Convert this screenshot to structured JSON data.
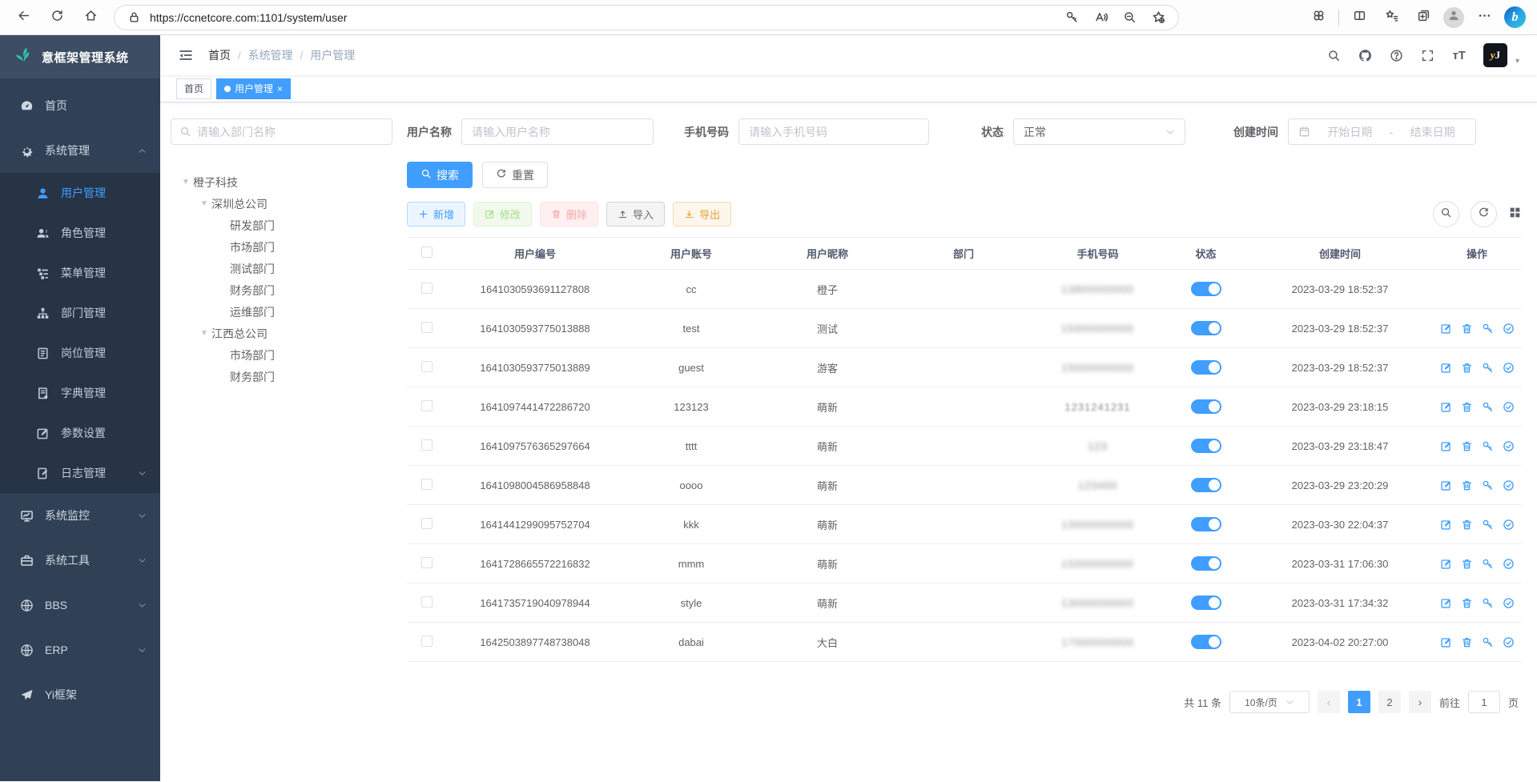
{
  "browser": {
    "url": "https://ccnetcore.com:1101/system/user"
  },
  "sidebar": {
    "logo_text": "意框架管理系统",
    "menu": [
      {
        "label": "首页",
        "icon": "dashboard",
        "level": 0
      },
      {
        "label": "系统管理",
        "icon": "gear",
        "level": 0,
        "chevron": "up"
      },
      {
        "label": "用户管理",
        "icon": "user",
        "level": 1,
        "active": true
      },
      {
        "label": "角色管理",
        "icon": "role",
        "level": 1
      },
      {
        "label": "菜单管理",
        "icon": "menu-tree",
        "level": 1
      },
      {
        "label": "部门管理",
        "icon": "org",
        "level": 1
      },
      {
        "label": "岗位管理",
        "icon": "badge",
        "level": 1
      },
      {
        "label": "字典管理",
        "icon": "book",
        "level": 1
      },
      {
        "label": "参数设置",
        "icon": "edit-square",
        "level": 1
      },
      {
        "label": "日志管理",
        "icon": "log",
        "level": 1,
        "chevron": "down"
      },
      {
        "label": "系统监控",
        "icon": "monitor",
        "level": 0,
        "chevron": "down"
      },
      {
        "label": "系统工具",
        "icon": "briefcase",
        "level": 0,
        "chevron": "down"
      },
      {
        "label": "BBS",
        "icon": "globe",
        "level": 0,
        "chevron": "down"
      },
      {
        "label": "ERP",
        "icon": "globe",
        "level": 0,
        "chevron": "down"
      },
      {
        "label": "Yi框架",
        "icon": "paper-plane",
        "level": 0
      }
    ]
  },
  "navbar": {
    "breadcrumb": [
      "首页",
      "系统管理",
      "用户管理"
    ],
    "avatar_text_left": "y",
    "avatar_text_right": "J"
  },
  "tabs": [
    {
      "label": "首页",
      "active": false,
      "closable": false
    },
    {
      "label": "用户管理",
      "active": true,
      "closable": true
    }
  ],
  "filters": {
    "dept_search_placeholder": "请输入部门名称",
    "username_label": "用户名称",
    "username_placeholder": "请输入用户名称",
    "phone_label": "手机号码",
    "phone_placeholder": "请输入手机号码",
    "status_label": "状态",
    "status_value": "正常",
    "created_label": "创建时间",
    "date_start_placeholder": "开始日期",
    "date_separator": "-",
    "date_end_placeholder": "结束日期",
    "search_button": "搜索",
    "reset_button": "重置"
  },
  "tree": [
    {
      "label": "橙子科技",
      "level": 0,
      "expandable": true
    },
    {
      "label": "深圳总公司",
      "level": 1,
      "expandable": true
    },
    {
      "label": "研发部门",
      "level": 2,
      "expandable": false
    },
    {
      "label": "市场部门",
      "level": 2,
      "expandable": false
    },
    {
      "label": "测试部门",
      "level": 2,
      "expandable": false
    },
    {
      "label": "财务部门",
      "level": 2,
      "expandable": false
    },
    {
      "label": "运维部门",
      "level": 2,
      "expandable": false
    },
    {
      "label": "江西总公司",
      "level": 1,
      "expandable": true
    },
    {
      "label": "市场部门",
      "level": 2,
      "expandable": false
    },
    {
      "label": "财务部门",
      "level": 2,
      "expandable": false
    }
  ],
  "toolbar": {
    "buttons": [
      {
        "label": "新增",
        "icon": "plus",
        "variant": "primary",
        "disabled": false
      },
      {
        "label": "修改",
        "icon": "edit",
        "variant": "success",
        "disabled": true
      },
      {
        "label": "删除",
        "icon": "trash",
        "variant": "danger",
        "disabled": true
      },
      {
        "label": "导入",
        "icon": "upload",
        "variant": "info",
        "disabled": false
      },
      {
        "label": "导出",
        "icon": "download",
        "variant": "warning",
        "disabled": false
      }
    ]
  },
  "table": {
    "columns": [
      "用户编号",
      "用户账号",
      "用户昵称",
      "部门",
      "手机号码",
      "状态",
      "创建时间",
      "操作"
    ],
    "row_action_icons": [
      "edit",
      "trash",
      "key",
      "check-circle"
    ],
    "rows": [
      {
        "id": "1641030593691127808",
        "account": "cc",
        "nickname": "橙子",
        "dept": "",
        "phone": "13800000000",
        "phone_masked": true,
        "mask": "heavy",
        "status_on": true,
        "created": "2023-03-29 18:52:37",
        "show_actions": false
      },
      {
        "id": "1641030593775013888",
        "account": "test",
        "nickname": "测试",
        "dept": "",
        "phone": "15000000000",
        "phone_masked": true,
        "mask": "heavy",
        "status_on": true,
        "created": "2023-03-29 18:52:37",
        "show_actions": true
      },
      {
        "id": "1641030593775013889",
        "account": "guest",
        "nickname": "游客",
        "dept": "",
        "phone": "15000000000",
        "phone_masked": true,
        "mask": "heavy",
        "status_on": true,
        "created": "2023-03-29 18:52:37",
        "show_actions": true
      },
      {
        "id": "1641097441472286720",
        "account": "123123",
        "nickname": "萌新",
        "dept": "",
        "phone": "1231241231",
        "phone_masked": true,
        "mask": "light",
        "status_on": true,
        "created": "2023-03-29 23:18:15",
        "show_actions": true
      },
      {
        "id": "1641097576365297664",
        "account": "tttt",
        "nickname": "萌新",
        "dept": "",
        "phone": "123",
        "phone_masked": true,
        "mask": "heavy",
        "status_on": true,
        "created": "2023-03-29 23:18:47",
        "show_actions": true
      },
      {
        "id": "1641098004586958848",
        "account": "oooo",
        "nickname": "萌新",
        "dept": "",
        "phone": "123400",
        "phone_masked": true,
        "mask": "heavy",
        "status_on": true,
        "created": "2023-03-29 23:20:29",
        "show_actions": true
      },
      {
        "id": "1641441299095752704",
        "account": "kkk",
        "nickname": "萌新",
        "dept": "",
        "phone": "13000000000",
        "phone_masked": true,
        "mask": "heavy",
        "status_on": true,
        "created": "2023-03-30 22:04:37",
        "show_actions": true
      },
      {
        "id": "1641728665572216832",
        "account": "mmm",
        "nickname": "萌新",
        "dept": "",
        "phone": "15000000000",
        "phone_masked": true,
        "mask": "heavy",
        "status_on": true,
        "created": "2023-03-31 17:06:30",
        "show_actions": true
      },
      {
        "id": "1641735719040978944",
        "account": "style",
        "nickname": "萌新",
        "dept": "",
        "phone": "13000000000",
        "phone_masked": true,
        "mask": "heavy",
        "status_on": true,
        "created": "2023-03-31 17:34:32",
        "show_actions": true
      },
      {
        "id": "1642503897748738048",
        "account": "dabai",
        "nickname": "大白",
        "dept": "",
        "phone": "17000000000",
        "phone_masked": true,
        "mask": "heavy",
        "status_on": true,
        "created": "2023-04-02 20:27:00",
        "show_actions": true
      }
    ]
  },
  "pagination": {
    "total_text": "共 11 条",
    "page_size_text": "10条/页",
    "pages": [
      "1",
      "2"
    ],
    "active_page": "1",
    "prev_enabled": false,
    "next_enabled": true,
    "goto_label": "前往",
    "goto_value": "1",
    "goto_suffix": "页"
  },
  "colors": {
    "primary": "#409eff",
    "sidebar_bg": "#304156",
    "sidebar_submenu_bg": "#263445",
    "toggle_on": "#409eff",
    "logo_green": "#2ec4a5"
  }
}
